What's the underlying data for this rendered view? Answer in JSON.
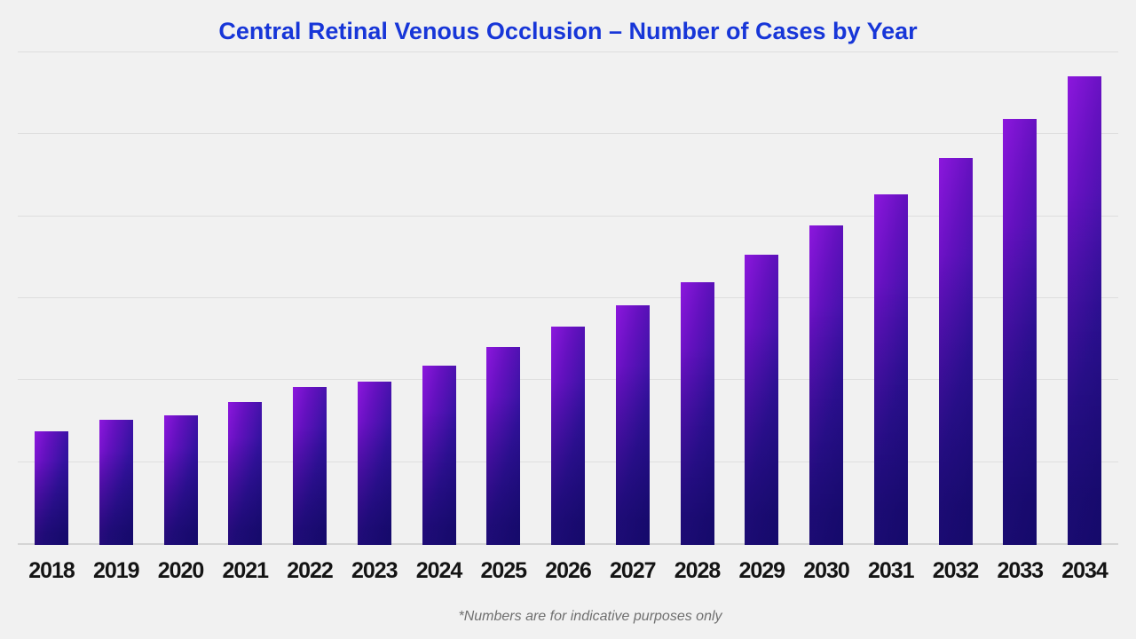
{
  "page": {
    "background_color": "#f1f1f1",
    "footnote": "*Numbers are for indicative purposes only"
  },
  "chart_data": {
    "type": "bar",
    "title": "Central Retinal Venous Occlusion – Number of Cases by Year",
    "title_color": "#1736d8",
    "categories": [
      "2018",
      "2019",
      "2020",
      "2021",
      "2022",
      "2023",
      "2024",
      "2025",
      "2026",
      "2027",
      "2028",
      "2029",
      "2030",
      "2031",
      "2032",
      "2033",
      "2034"
    ],
    "values": [
      695,
      765,
      790,
      870,
      965,
      995,
      1095,
      1205,
      1330,
      1460,
      1605,
      1770,
      1950,
      2140,
      2360,
      2600,
      2860
    ],
    "xlabel": "",
    "ylabel": "",
    "ylim": [
      0,
      3000
    ],
    "gridline_step": 500,
    "grid": "horizontal-only",
    "legend_position": "none",
    "y_tick_labels_visible": false,
    "bar_gradient_colors": [
      "#8c17dd",
      "#1f0f86"
    ],
    "annotations": [
      "*Numbers are for indicative purposes only"
    ]
  }
}
